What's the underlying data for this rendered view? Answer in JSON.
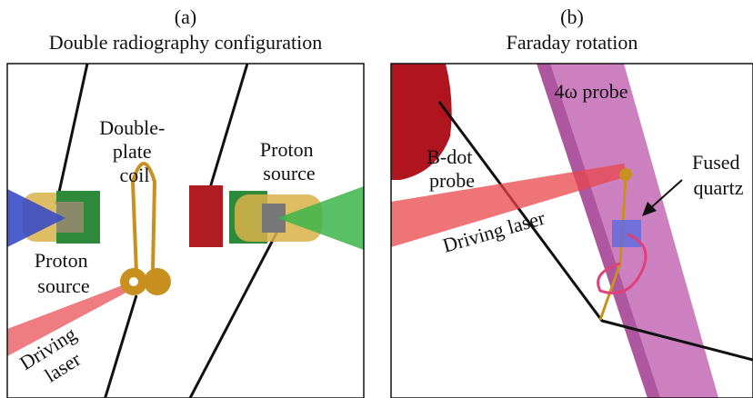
{
  "panels": [
    {
      "label": "(a)",
      "title": "Double radiography configuration",
      "annotations": [
        {
          "lines": [
            "Double-",
            "plate",
            "coil"
          ]
        },
        {
          "lines": [
            "Proton",
            "source"
          ]
        },
        {
          "lines": [
            "Proton",
            "source"
          ]
        },
        {
          "lines": [
            "Driving",
            "laser"
          ]
        }
      ]
    },
    {
      "label": "(b)",
      "title": "Faraday rotation",
      "annotations": [
        {
          "lines": [
            "4ω probe"
          ]
        },
        {
          "lines": [
            "B-dot",
            "probe"
          ]
        },
        {
          "lines": [
            "Fused",
            "quartz"
          ]
        },
        {
          "lines": [
            "Driving laser"
          ]
        }
      ]
    }
  ]
}
